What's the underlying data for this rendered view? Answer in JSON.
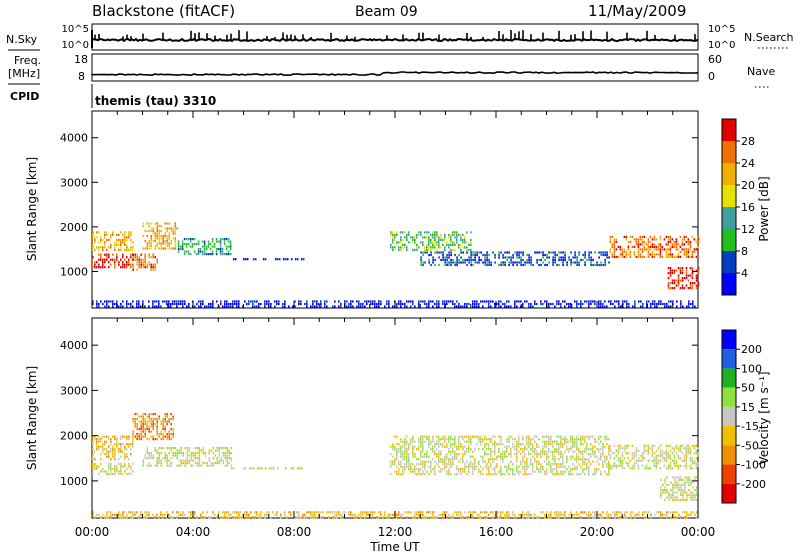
{
  "header": {
    "station": "Blackstone (fitACF)",
    "beam": "Beam 09",
    "date": "11/May/2009"
  },
  "top_panels": {
    "nsky_label": "N.Sky",
    "nsky_ticks": [
      "10^5",
      "10^0"
    ],
    "nsearch_label": "N.Search",
    "nsearch_ticks": [
      "10^5",
      "10^0"
    ],
    "freq_label": "Freq.",
    "freq_unit": "[MHz]",
    "freq_ticks": [
      "18",
      "8"
    ],
    "nave_label": "Nave",
    "nave_ticks": [
      "60",
      "0"
    ],
    "cpid_label": "CPID",
    "cpid_value": "themis (tau) 3310"
  },
  "chart_data": [
    {
      "type": "heatmap",
      "name": "power-panel",
      "ylabel": "Slant Range [km]",
      "yticks": [
        1000,
        2000,
        3000,
        4000
      ],
      "ylim": [
        180,
        4600
      ],
      "xlim": [
        0,
        24
      ],
      "colorbar": {
        "label": "Power [dB]",
        "ticks": [
          "28",
          "24",
          "20",
          "16",
          "12",
          "8",
          "4"
        ],
        "colors": [
          "#e00000",
          "#f07000",
          "#f0b000",
          "#e8e000",
          "#40a0a0",
          "#20c020",
          "#0040c0",
          "#0000ff"
        ]
      },
      "patches": [
        {
          "t0": 0.0,
          "t1": 1.6,
          "r0": 1100,
          "r1": 1400,
          "level": 0
        },
        {
          "t0": 0.0,
          "t1": 1.6,
          "r0": 1500,
          "r1": 1900,
          "level": 2
        },
        {
          "t0": 1.6,
          "t1": 2.6,
          "r0": 1050,
          "r1": 1400,
          "level": 1
        },
        {
          "t0": 2.0,
          "t1": 3.4,
          "r0": 1500,
          "r1": 2100,
          "level": 2
        },
        {
          "t0": 3.4,
          "t1": 5.5,
          "r0": 1400,
          "r1": 1750,
          "level": 5
        },
        {
          "t0": 5.5,
          "t1": 8.5,
          "r0": 1250,
          "r1": 1300,
          "level": 7
        },
        {
          "t0": 11.8,
          "t1": 15.0,
          "r0": 1500,
          "r1": 1900,
          "level": 4
        },
        {
          "t0": 13.0,
          "t1": 20.5,
          "r0": 1150,
          "r1": 1450,
          "level": 6
        },
        {
          "t0": 20.5,
          "t1": 24.0,
          "r0": 1350,
          "r1": 1800,
          "level": 1
        },
        {
          "t0": 22.8,
          "t1": 24.0,
          "r0": 650,
          "r1": 1100,
          "level": 0
        },
        {
          "t0": 0.0,
          "t1": 24.0,
          "r0": 200,
          "r1": 350,
          "level": 7
        }
      ]
    },
    {
      "type": "heatmap",
      "name": "velocity-panel",
      "ylabel": "Slant Range [km]",
      "xlabel": "Time UT",
      "yticks": [
        1000,
        2000,
        3000,
        4000
      ],
      "xticks": [
        "00:00",
        "04:00",
        "08:00",
        "12:00",
        "16:00",
        "20:00",
        "00:00"
      ],
      "ylim": [
        180,
        4600
      ],
      "xlim": [
        0,
        24
      ],
      "colorbar": {
        "label": "Velocity [m s⁻¹]",
        "ticks": [
          "200",
          "100",
          "50",
          "15",
          "-15",
          "-50",
          "-100",
          "-200"
        ],
        "colors": [
          "#0000ff",
          "#2060e0",
          "#20b020",
          "#90e040",
          "#c8c8c0",
          "#f0c000",
          "#f09000",
          "#f04000",
          "#e00000"
        ]
      },
      "patches": [
        {
          "t0": 0.0,
          "t1": 1.6,
          "r0": 1500,
          "r1": 2000,
          "level": 5
        },
        {
          "t0": 0.0,
          "t1": 1.6,
          "r0": 1150,
          "r1": 1400,
          "level": 4
        },
        {
          "t0": 1.6,
          "t1": 3.2,
          "r0": 1900,
          "r1": 2500,
          "level": 6
        },
        {
          "t0": 2.0,
          "t1": 5.5,
          "r0": 1350,
          "r1": 1750,
          "level": 4
        },
        {
          "t0": 5.5,
          "t1": 8.5,
          "r0": 1250,
          "r1": 1300,
          "level": 4
        },
        {
          "t0": 11.8,
          "t1": 20.5,
          "r0": 1150,
          "r1": 2000,
          "level": 4
        },
        {
          "t0": 20.5,
          "t1": 24.0,
          "r0": 1300,
          "r1": 1800,
          "level": 4
        },
        {
          "t0": 22.5,
          "t1": 24.0,
          "r0": 600,
          "r1": 1100,
          "level": 4
        },
        {
          "t0": 0.0,
          "t1": 24.0,
          "r0": 200,
          "r1": 330,
          "level": 5
        }
      ]
    }
  ]
}
